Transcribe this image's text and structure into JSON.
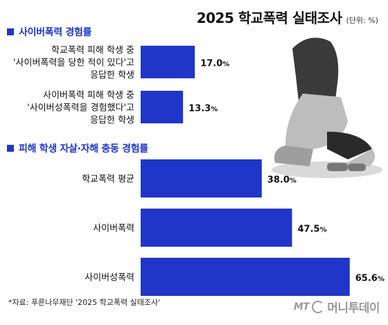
{
  "header": {
    "title": "2025 학교폭력 실태조사",
    "unit": "(단위: %)"
  },
  "sections": [
    {
      "label": "사이버폭력 경험률"
    },
    {
      "label": "피해 학생 자살·자해 충동 경험률"
    }
  ],
  "chart_data": [
    {
      "type": "bar",
      "orientation": "horizontal",
      "title": "사이버폭력 경험률",
      "categories": [
        [
          "학교폭력 피해 학생 중",
          "'사이버폭력을 당한 적이 있다'고",
          "응답한 학생"
        ],
        [
          "사이버폭력 피해 학생 중",
          "'사이버성폭력을 경험했다'고",
          "응답한 학생"
        ]
      ],
      "values": [
        17.0,
        13.3
      ],
      "value_labels": [
        "17.0",
        "13.3"
      ],
      "color": "#1f36c9",
      "xlim": [
        0,
        100
      ]
    },
    {
      "type": "bar",
      "orientation": "horizontal",
      "title": "피해 학생 자살·자해 충동 경험률",
      "categories": [
        "학교폭력 평균",
        "사이버폭력",
        "사이버성폭력"
      ],
      "values": [
        38.0,
        47.5,
        65.6
      ],
      "value_labels": [
        "38.0",
        "47.5",
        "65.6"
      ],
      "color": "#1f36c9",
      "xlim": [
        0,
        100
      ]
    }
  ],
  "value_suffix": "%",
  "footer": {
    "source": "*자료: 푸른나무재단 '2025 학교폭력 실태조사'",
    "brand_prefix": "MT",
    "brand": "머니투데이"
  }
}
